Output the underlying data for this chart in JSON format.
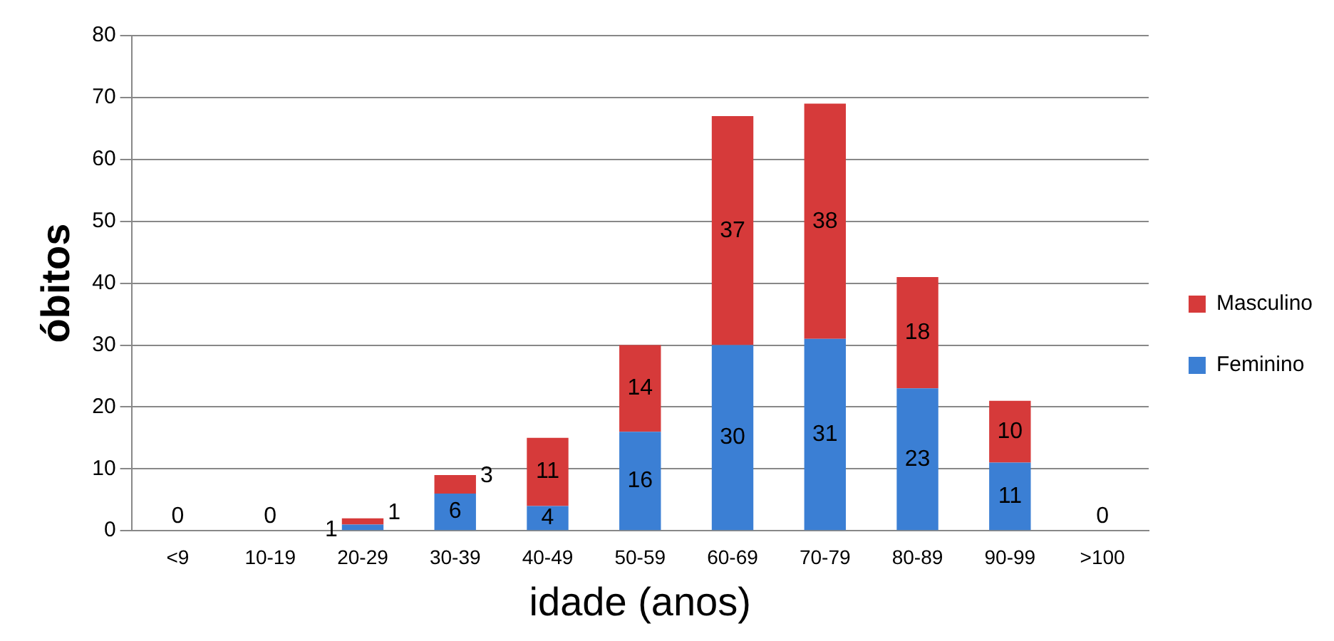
{
  "chart_data": {
    "type": "bar",
    "xlabel": "idade (anos)",
    "ylabel": "óbitos",
    "categories": [
      "<9",
      "10-19",
      "20-29",
      "30-39",
      "40-49",
      "50-59",
      "60-69",
      "70-79",
      "80-89",
      "90-99",
      ">100"
    ],
    "series": [
      {
        "name": "Feminino",
        "color": "#3b7fd4",
        "values": [
          0,
          0,
          1,
          6,
          4,
          16,
          30,
          31,
          23,
          11,
          0
        ],
        "value_labels": [
          "0",
          "0",
          "1",
          "6",
          "4",
          "16",
          "30",
          "31",
          "23",
          "11",
          "0"
        ]
      },
      {
        "name": "Masculino",
        "color": "#d63a3a",
        "values": [
          0,
          0,
          1,
          3,
          11,
          14,
          37,
          38,
          18,
          10,
          0
        ],
        "value_labels": [
          null,
          null,
          "1",
          "3",
          "11",
          "14",
          "37",
          "38",
          "18",
          "10",
          null
        ]
      }
    ],
    "stacked": true,
    "ylim": [
      0,
      80
    ],
    "yticks": [
      0,
      10,
      20,
      30,
      40,
      50,
      60,
      70,
      80
    ],
    "grid": "y",
    "legend": "right"
  }
}
